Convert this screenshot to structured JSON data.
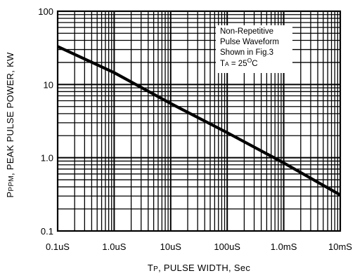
{
  "chart_data": {
    "type": "line",
    "title": "",
    "xlabel": {
      "main": "T",
      "sub": "P",
      "rest": ", PULSE WIDTH, Sec"
    },
    "ylabel": {
      "main": "P",
      "sub": "PPM",
      "rest": ", PEAK PULSE POWER, KW"
    },
    "x_scale": "log",
    "y_scale": "log",
    "x_unit": "s",
    "y_unit": "kW",
    "xlim": [
      1e-07,
      0.01
    ],
    "ylim": [
      0.1,
      100
    ],
    "grid": true,
    "x_ticks": [
      {
        "value": 1e-07,
        "label": "0.1uS"
      },
      {
        "value": 1e-06,
        "label": "1.0uS"
      },
      {
        "value": 1e-05,
        "label": "10uS"
      },
      {
        "value": 0.0001,
        "label": "100uS"
      },
      {
        "value": 0.001,
        "label": "1.0mS"
      },
      {
        "value": 0.01,
        "label": "10mS"
      }
    ],
    "y_ticks": [
      {
        "value": 0.1,
        "label": "0.1"
      },
      {
        "value": 1,
        "label": "1.0"
      },
      {
        "value": 10,
        "label": "10"
      },
      {
        "value": 100,
        "label": "100"
      }
    ],
    "series": [
      {
        "x": [
          1e-07,
          1e-06,
          1e-05,
          0.0001,
          0.001,
          0.01
        ],
        "y": [
          33,
          14.5,
          5.5,
          2.2,
          0.85,
          0.31
        ],
        "color": "#000000"
      }
    ],
    "annotation": {
      "lines": [
        "Non-Repetitive",
        "Pulse Waveform",
        "Shown in Fig.3"
      ],
      "temp": {
        "main": "T",
        "sub": "A",
        "eq": " = 25",
        "sup": "O",
        "unit": "C"
      },
      "position": "top-right"
    }
  }
}
